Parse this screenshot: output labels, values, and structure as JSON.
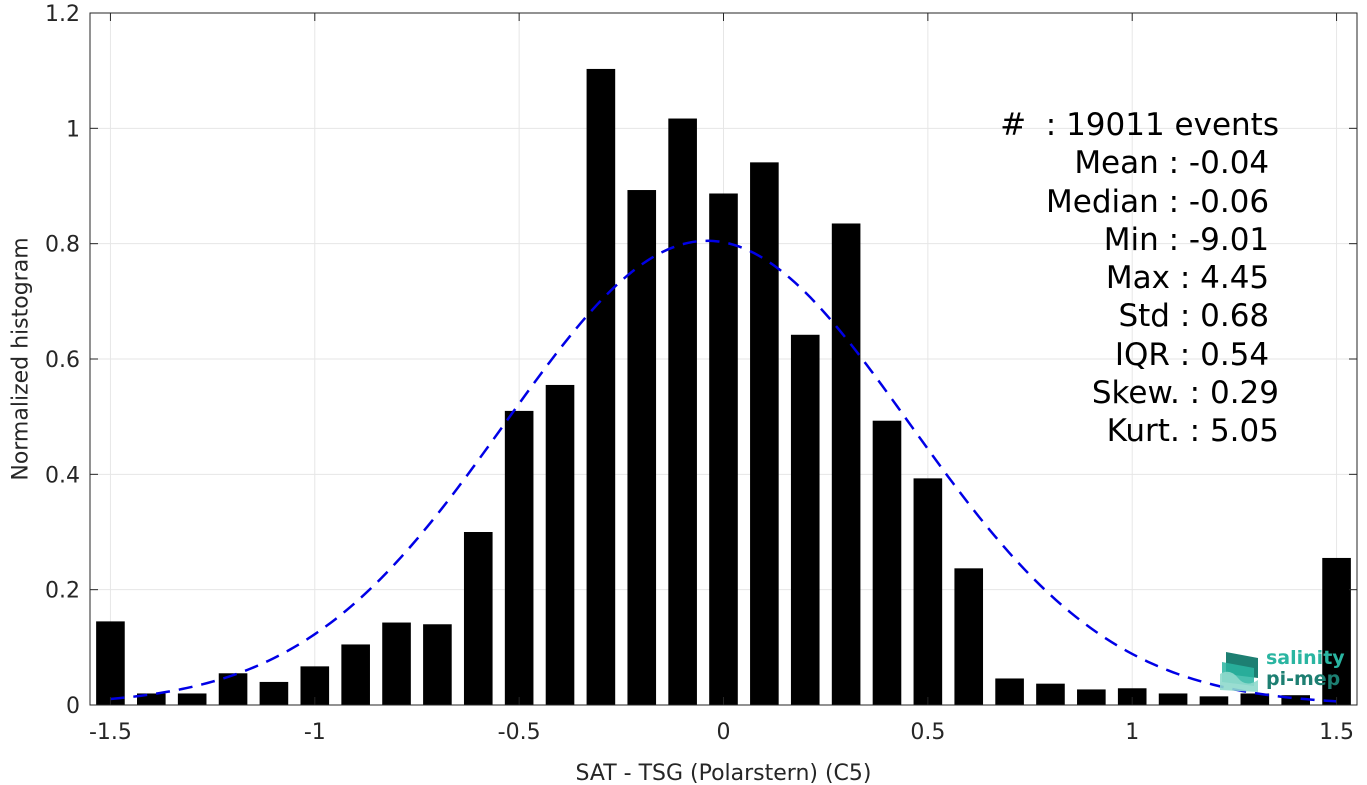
{
  "chart_data": {
    "type": "bar",
    "xlabel": "SAT - TSG (Polarstern) (C5)",
    "ylabel": "Normalized histogram",
    "xlim": [
      -1.55,
      1.55
    ],
    "ylim": [
      0,
      1.2
    ],
    "xticks": [
      -1.5,
      -1,
      -0.5,
      0,
      0.5,
      1,
      1.5
    ],
    "xtick_labels": [
      "-1.5",
      "-1",
      "-0.5",
      "0",
      "0.5",
      "1",
      "1.5"
    ],
    "yticks": [
      0,
      0.2,
      0.4,
      0.6,
      0.8,
      1,
      1.2
    ],
    "ytick_labels": [
      "0",
      "0.2",
      "0.4",
      "0.6",
      "0.8",
      "1",
      "1.2"
    ],
    "grid": true,
    "bar_width": 0.07,
    "x": [
      -1.5,
      -1.4,
      -1.3,
      -1.2,
      -1.1,
      -1.0,
      -0.9,
      -0.8,
      -0.7,
      -0.6,
      -0.5,
      -0.4,
      -0.3,
      -0.2,
      -0.1,
      0.0,
      0.1,
      0.2,
      0.3,
      0.4,
      0.5,
      0.6,
      0.7,
      0.8,
      0.9,
      1.0,
      1.1,
      1.2,
      1.3,
      1.4,
      1.5
    ],
    "values": [
      0.145,
      0.02,
      0.02,
      0.055,
      0.04,
      0.067,
      0.105,
      0.143,
      0.14,
      0.3,
      0.51,
      0.555,
      1.103,
      0.893,
      1.017,
      0.887,
      0.941,
      0.642,
      0.835,
      0.493,
      0.393,
      0.237,
      0.046,
      0.037,
      0.027,
      0.029,
      0.02,
      0.015,
      0.02,
      0.017,
      0.255
    ],
    "bar_color": "#000000",
    "fit": {
      "style": "dashed",
      "color": "#0000e6",
      "mean": -0.04,
      "std": 0.495,
      "peak": 0.805,
      "range": [
        -1.5,
        1.5
      ]
    }
  },
  "stats": {
    "lines": [
      "#  : 19011 events",
      "Mean : -0.04 ",
      "Median : -0.06 ",
      "Min : -9.01 ",
      "Max : 4.45 ",
      "Std : 0.68 ",
      "IQR : 0.54 ",
      "Skew. : 0.29",
      "Kurt. : 5.05"
    ]
  },
  "logo": {
    "line1": "salinity",
    "line2": "pi-mep",
    "colors": [
      "#2ab5a1",
      "#1d7f72"
    ]
  }
}
